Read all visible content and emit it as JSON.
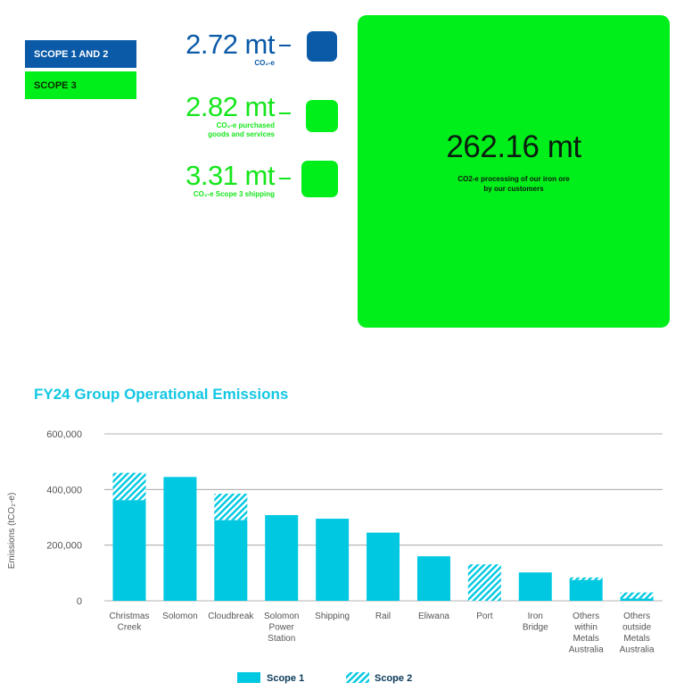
{
  "legend_top": {
    "scope12_label": "SCOPE 1 AND 2",
    "scope3_label": "SCOPE 3"
  },
  "stats": [
    {
      "value": "2.72 mt",
      "desc": "CO₂-e",
      "color": "#0a5aa8"
    },
    {
      "value": "2.82 mt",
      "desc": "CO₂-e purchased\ngoods and services",
      "color": "#15e61c"
    },
    {
      "value": "3.31 mt",
      "desc": "CO₂-e Scope 3 shipping",
      "color": "#15e61c"
    }
  ],
  "big_square": {
    "value": "262.16 mt",
    "desc": "CO2-e processing of our iron ore\nby our customers",
    "color": "#00ef1a"
  },
  "colors": {
    "scope1": "#00c8e1",
    "scope2_hatch": "#00c8e1",
    "blue": "#0a5aa8",
    "green": "#00ef1a",
    "title": "#13c7e3"
  },
  "chart_data": {
    "type": "bar",
    "title": "FY24 Group Operational Emissions",
    "ylabel": "Emissions (tCO₂-e)",
    "ylim": [
      0,
      600000
    ],
    "yticks": [
      0,
      200000,
      400000,
      600000
    ],
    "ytick_labels": [
      "0",
      "200,000",
      "400,000",
      "600,000"
    ],
    "grid": true,
    "categories": [
      "Christmas\nCreek",
      "Solomon",
      "Cloudbreak",
      "Solomon\nPower\nStation",
      "Shipping",
      "Rail",
      "Eliwana",
      "Port",
      "Iron\nBridge",
      "Others\nwithin\nMetals\nAustralia",
      "Others\noutside\nMetals\nAustralia"
    ],
    "series": [
      {
        "name": "Scope 1",
        "values": [
          362000,
          445000,
          290000,
          308000,
          295000,
          245000,
          160000,
          0,
          102000,
          75000,
          8000
        ]
      },
      {
        "name": "Scope 2",
        "values": [
          98000,
          0,
          95000,
          0,
          0,
          0,
          0,
          131000,
          0,
          9000,
          22000
        ]
      }
    ],
    "legend_position": "bottom"
  }
}
